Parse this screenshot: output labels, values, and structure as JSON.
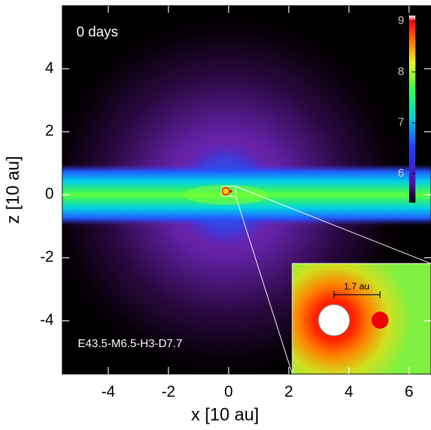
{
  "chart_data": {
    "type": "image",
    "xlabel": "x [10 au]",
    "ylabel": "z [10 au]",
    "xlim": [
      -5.53,
      6.73
    ],
    "xticks": [
      -4,
      -2,
      0,
      2,
      4,
      6
    ],
    "ylim": [
      -5.69,
      6.0
    ],
    "yticks": [
      -4,
      -2,
      0,
      2,
      4
    ],
    "colorbar": {
      "lim": [
        5.43,
        9.11
      ],
      "ticks": [
        6,
        7,
        8,
        9
      ]
    },
    "annotations": {
      "time": "0 days",
      "model": "E43.5-M6.5-H3-D7.7",
      "scale": "1.7 au"
    }
  }
}
